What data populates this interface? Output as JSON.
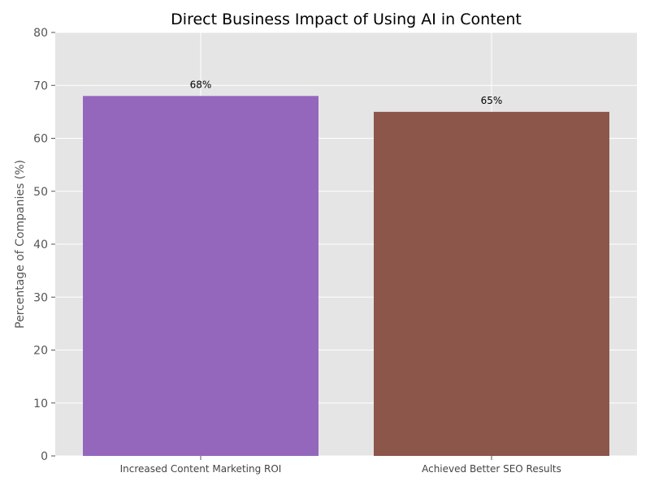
{
  "chart_data": {
    "type": "bar",
    "title": "Direct Business Impact of Using AI in Content",
    "xlabel": "",
    "ylabel": "Percentage of Companies (%)",
    "categories": [
      "Increased Content Marketing ROI",
      "Achieved Better SEO Results"
    ],
    "values": [
      68,
      65
    ],
    "data_labels": [
      "68%",
      "65%"
    ],
    "bar_colors": [
      "#9467bd",
      "#8c564b"
    ],
    "ylim": [
      0,
      80
    ],
    "yticks": [
      0,
      10,
      20,
      30,
      40,
      50,
      60,
      70,
      80
    ],
    "grid": true,
    "plot_background": "#e5e5e5",
    "grid_color": "#ffffff"
  }
}
